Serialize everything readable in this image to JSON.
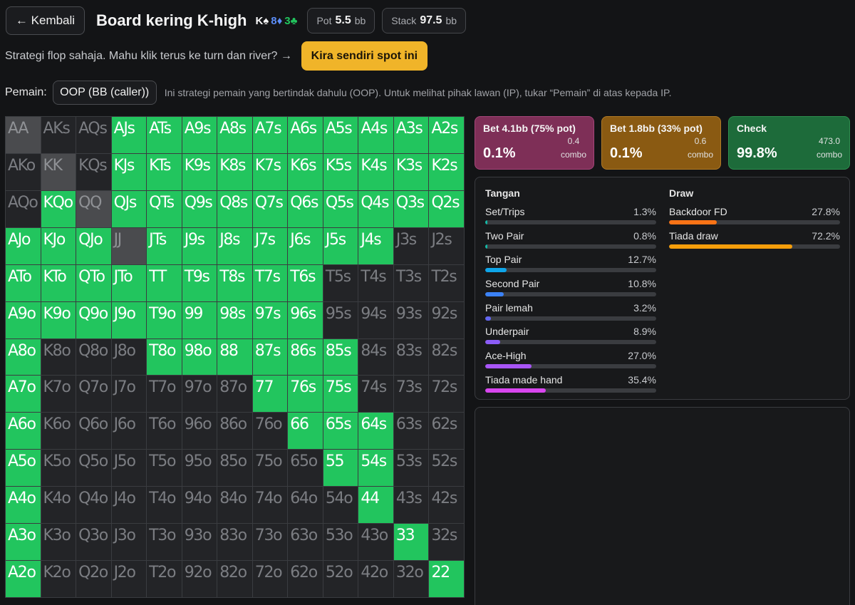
{
  "header": {
    "back_label": "← Kembali",
    "title": "Board kering K-high",
    "board": [
      {
        "rank": "K",
        "suit": "♠",
        "color": "#f5f5f5"
      },
      {
        "rank": "8",
        "suit": "♦",
        "color": "#5b8df6"
      },
      {
        "rank": "3",
        "suit": "♣",
        "color": "#22c55e"
      }
    ],
    "pot_label": "Pot",
    "pot_value": "5.5",
    "pot_unit": "bb",
    "stack_label": "Stack",
    "stack_value": "97.5",
    "stack_unit": "bb"
  },
  "notice": {
    "text": "Strategi flop sahaja. Mahu klik terus ke turn dan river? →",
    "button_label": "Kira sendiri spot ini"
  },
  "player": {
    "label": "Pemain:",
    "selected": "OOP (BB (caller))",
    "note": "Ini strategi pemain yang bertindak dahulu (OOP). Untuk melihat pihak lawan (IP), tukar “Pemain” di atas kepada IP."
  },
  "grid": {
    "rows": [
      [
        "AA",
        "AKs",
        "AQs",
        "AJs",
        "ATs",
        "A9s",
        "A8s",
        "A7s",
        "A6s",
        "A5s",
        "A4s",
        "A3s",
        "A2s"
      ],
      [
        "AKo",
        "KK",
        "KQs",
        "KJs",
        "KTs",
        "K9s",
        "K8s",
        "K7s",
        "K6s",
        "K5s",
        "K4s",
        "K3s",
        "K2s"
      ],
      [
        "AQo",
        "KQo",
        "QQ",
        "QJs",
        "QTs",
        "Q9s",
        "Q8s",
        "Q7s",
        "Q6s",
        "Q5s",
        "Q4s",
        "Q3s",
        "Q2s"
      ],
      [
        "AJo",
        "KJo",
        "QJo",
        "JJ",
        "JTs",
        "J9s",
        "J8s",
        "J7s",
        "J6s",
        "J5s",
        "J4s",
        "J3s",
        "J2s"
      ],
      [
        "ATo",
        "KTo",
        "QTo",
        "JTo",
        "TT",
        "T9s",
        "T8s",
        "T7s",
        "T6s",
        "T5s",
        "T4s",
        "T3s",
        "T2s"
      ],
      [
        "A9o",
        "K9o",
        "Q9o",
        "J9o",
        "T9o",
        "99",
        "98s",
        "97s",
        "96s",
        "95s",
        "94s",
        "93s",
        "92s"
      ],
      [
        "A8o",
        "K8o",
        "Q8o",
        "J8o",
        "T8o",
        "98o",
        "88",
        "87s",
        "86s",
        "85s",
        "84s",
        "83s",
        "82s"
      ],
      [
        "A7o",
        "K7o",
        "Q7o",
        "J7o",
        "T7o",
        "97o",
        "87o",
        "77",
        "76s",
        "75s",
        "74s",
        "73s",
        "72s"
      ],
      [
        "A6o",
        "K6o",
        "Q6o",
        "J6o",
        "T6o",
        "96o",
        "86o",
        "76o",
        "66",
        "65s",
        "64s",
        "63s",
        "62s"
      ],
      [
        "A5o",
        "K5o",
        "Q5o",
        "J5o",
        "T5o",
        "95o",
        "85o",
        "75o",
        "65o",
        "55",
        "54s",
        "53s",
        "52s"
      ],
      [
        "A4o",
        "K4o",
        "Q4o",
        "J4o",
        "T4o",
        "94o",
        "84o",
        "74o",
        "64o",
        "54o",
        "44",
        "43s",
        "42s"
      ],
      [
        "A3o",
        "K3o",
        "Q3o",
        "J3o",
        "T3o",
        "93o",
        "83o",
        "73o",
        "63o",
        "53o",
        "43o",
        "33",
        "32s"
      ],
      [
        "A2o",
        "K2o",
        "Q2o",
        "J2o",
        "T2o",
        "92o",
        "82o",
        "72o",
        "62o",
        "52o",
        "42o",
        "32o",
        "22"
      ]
    ],
    "states": [
      "PDDGGGGGGGGGG",
      "DPDGGGGGGGGGG",
      "DGPGGGGGGGGGG",
      "GGGPGGGGGGGDD",
      "GGGGGGGGGDDDD",
      "GGGGGGGGGDDDD",
      "GDDDGGGGGGDDD",
      "GDDDDDDGGGDDD",
      "GDDDDDDDGGGDD",
      "GDDDDDDDDGGDD",
      "GDDDDDDDDDGDD",
      "GDDDDDDDDDDGD",
      "GDDDDDDDDDDDG"
    ],
    "state_colors": {
      "G": "#22c55e",
      "D": "#232427",
      "P": "#4a4b4e"
    }
  },
  "actions": [
    {
      "name": "Bet 4.1bb (75% pot)",
      "pct": "0.1%",
      "combo_value": "0.4",
      "combo_label": "combo"
    },
    {
      "name": "Bet 1.8bb (33% pot)",
      "pct": "0.1%",
      "combo_value": "0.6",
      "combo_label": "combo"
    },
    {
      "name": "Check",
      "pct": "99.8%",
      "combo_value": "473.0",
      "combo_label": "combo"
    }
  ],
  "hand_stats": {
    "title": "Tangan",
    "items": [
      {
        "label": "Set/Trips",
        "pct_text": "1.3%",
        "value": 1.3,
        "color": "#14b8a6"
      },
      {
        "label": "Two Pair",
        "pct_text": "0.8%",
        "value": 0.8,
        "color": "#14b8a6"
      },
      {
        "label": "Top Pair",
        "pct_text": "12.7%",
        "value": 12.7,
        "color": "#0ea5e9"
      },
      {
        "label": "Second Pair",
        "pct_text": "10.8%",
        "value": 10.8,
        "color": "#3b82f6"
      },
      {
        "label": "Pair lemah",
        "pct_text": "3.2%",
        "value": 3.2,
        "color": "#6366f1"
      },
      {
        "label": "Underpair",
        "pct_text": "8.9%",
        "value": 8.9,
        "color": "#8b5cf6"
      },
      {
        "label": "Ace-High",
        "pct_text": "27.0%",
        "value": 27.0,
        "color": "#a855f7"
      },
      {
        "label": "Tiada made hand",
        "pct_text": "35.4%",
        "value": 35.4,
        "color": "#d946ef"
      }
    ]
  },
  "draw_stats": {
    "title": "Draw",
    "items": [
      {
        "label": "Backdoor FD",
        "pct_text": "27.8%",
        "value": 27.8,
        "color": "#f97316"
      },
      {
        "label": "Tiada draw",
        "pct_text": "72.2%",
        "value": 72.2,
        "color": "#f59e0b"
      }
    ]
  }
}
